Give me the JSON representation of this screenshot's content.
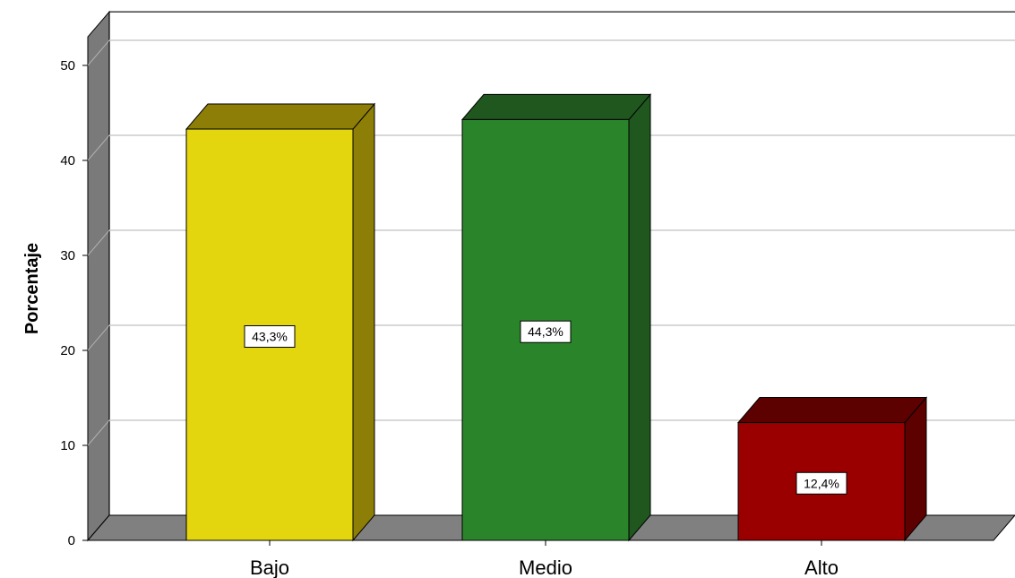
{
  "chart_data": {
    "type": "bar",
    "categories": [
      "Bajo",
      "Medio",
      "Alto"
    ],
    "values": [
      43.3,
      44.3,
      12.4
    ],
    "data_labels": [
      "43,3%",
      "44,3%",
      "12,4%"
    ],
    "ylabel": "Porcentaje",
    "xlabel": "",
    "ylim": [
      0,
      53
    ],
    "yticks": [
      "0",
      "10",
      "20",
      "30",
      "40",
      "50"
    ],
    "grid": true,
    "style": "3d",
    "colors": {
      "Bajo": {
        "front": "#e3d60e",
        "side": "#8c7e06",
        "top": "#8c7e06"
      },
      "Medio": {
        "front": "#2a852a",
        "side": "#1f571f",
        "top": "#1f571f"
      },
      "Alto": {
        "front": "#9a0000",
        "side": "#5c0000",
        "top": "#5c0000"
      }
    },
    "floor_color": "#808080"
  }
}
